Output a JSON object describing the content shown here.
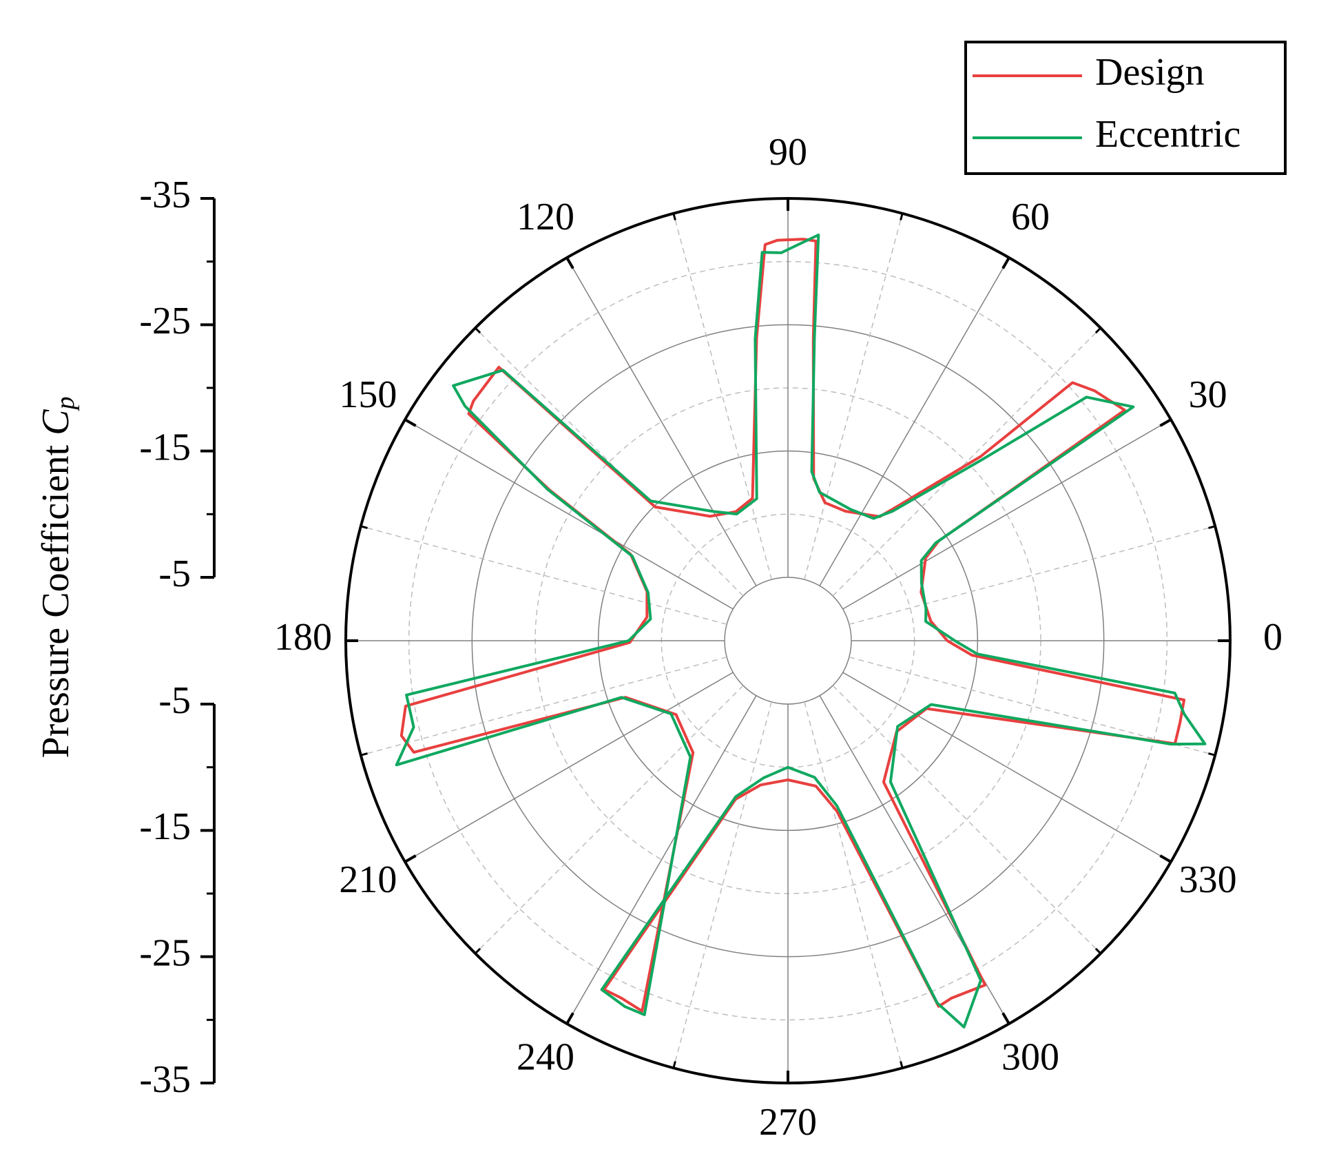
{
  "chart_data": {
    "type": "polar",
    "rlabel": "Pressure Coefficient ",
    "rlabel_symbol": "C",
    "rlabel_subscript": "p",
    "rlim": [
      -5,
      -35
    ],
    "rticks": [
      -35,
      -25,
      -15,
      -5
    ],
    "rminorticks": [
      -30,
      -20,
      -10
    ],
    "thetaticks": [
      0,
      30,
      60,
      90,
      120,
      150,
      180,
      210,
      240,
      270,
      300,
      330
    ],
    "thetaminorticks": [
      15,
      45,
      75,
      105,
      135,
      165,
      195,
      225,
      255,
      285,
      315,
      345
    ],
    "grid": true,
    "legend": "upper right",
    "series": [
      {
        "name": "Design",
        "color": "#e8403f",
        "theta": [
          0,
          7.8,
          20,
          31,
          33.5,
          34.0,
          34.4,
          39.2,
          42.2,
          43.7,
          51,
          53.5,
          66,
          75,
          81,
          85.2,
          86.0,
          87.8,
          91.5,
          93.3,
          95.9,
          104,
          112,
          122,
          134.8,
          136.6,
          142.7,
          144.6,
          147.7,
          151.2,
          160.8,
          170.5,
          180.6,
          189.7,
          193.8,
          196.6,
          199.2,
          213.4,
          229.7,
          248.5,
          245,
          242.2,
          251.7,
          259.3,
          270,
          280.9,
          286,
          292.4,
          294.6,
          299.8,
          304.1,
          320.1,
          333.9,
          345.1,
          348.2,
          351.5,
          355.5
        ],
        "values": [
          -12.6,
          -11.4,
          -11.2,
          -12.7,
          -14.3,
          -22.0,
          -32.3,
          -31.3,
          -30.4,
          -21.1,
          -13.6,
          -12.2,
          -11.2,
          -11.3,
          -13.0,
          -24.0,
          -31.7,
          -31.8,
          -31.7,
          -31.4,
          -24.1,
          -11.6,
          -11.0,
          -11.6,
          -14.9,
          -31.5,
          -31.3,
          -31.0,
          -22.3,
          -14.2,
          -11.8,
          -11.3,
          -12.5,
          -30.7,
          -31.5,
          -30.9,
          -13.6,
          -10.6,
          -11.6,
          -31.5,
          -31.2,
          -31.2,
          -13.2,
          -11.6,
          -11.0,
          -11.7,
          -14.0,
          -31.3,
          -31.1,
          -31.4,
          -13.5,
          -11.2,
          -12.2,
          -31.7,
          -31.7,
          -31.7,
          -14.6
        ]
      },
      {
        "name": "Eccentric",
        "color": "#10a860",
        "theta": [
          0,
          8,
          13,
          23.3,
          31,
          33.5,
          34.1,
          37,
          39.2,
          43.0,
          51,
          55,
          64.5,
          78,
          82,
          85,
          85.7,
          88,
          91,
          93.8,
          96.2,
          102.4,
          112,
          120,
          134.5,
          136.5,
          142.7,
          144,
          147.8,
          151.5,
          161,
          171,
          180,
          188.1,
          193,
          197.6,
          198.8,
          212,
          230,
          249,
          246,
          241.9,
          251.5,
          260,
          270,
          281,
          286.5,
          292.4,
          294.5,
          299.6,
          306,
          322,
          336,
          344.9,
          346.1,
          349.5,
          352.3,
          356
        ],
        "values": [
          -13.2,
          -11.0,
          -11.2,
          -11.5,
          -12.3,
          -14.0,
          -33.0,
          -31.5,
          -30.5,
          -21.0,
          -13.2,
          -11.8,
          -11.5,
          -12.0,
          -13.5,
          -24.0,
          -32.2,
          -31.5,
          -30.7,
          -30.8,
          -24.0,
          -11.5,
          -10.8,
          -11.8,
          -15.5,
          -31.1,
          -33.3,
          -31.6,
          -22.5,
          -14.0,
          -11.7,
          -11.0,
          -12.6,
          -30.5,
          -30.4,
          -32.5,
          -13.9,
          -10.9,
          -12.0,
          -31.7,
          -31.7,
          -31.3,
          -13.0,
          -11.0,
          -10.0,
          -11.0,
          -13.6,
          -31.0,
          -33.6,
          -30.9,
          -13.8,
          -11.0,
          -12.4,
          -31.4,
          -34.0,
          -31.9,
          -30.9,
          -15.0
        ]
      }
    ]
  }
}
